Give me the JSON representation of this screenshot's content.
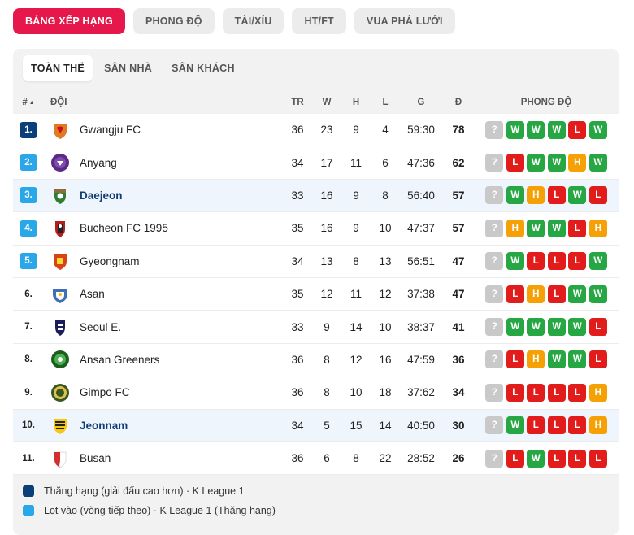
{
  "top_tabs": [
    "BẢNG XẾP HẠNG",
    "PHONG ĐỘ",
    "TÀI/XỈU",
    "HT/FT",
    "VUA PHÁ LƯỚI"
  ],
  "sub_tabs": [
    "TOÀN THỂ",
    "SÂN NHÀ",
    "SÂN KHÁCH"
  ],
  "headers": {
    "rank": "#",
    "team": "ĐỘI",
    "tr": "TR",
    "w": "W",
    "d": "H",
    "l": "L",
    "g": "G",
    "pts": "Đ",
    "form": "PHONG ĐỘ"
  },
  "colors": {
    "accent": "#e5174b",
    "promo": "#0a3f7a",
    "playoff": "#2aa7e8",
    "win": "#27a744",
    "loss": "#e21b1b",
    "draw": "#f5a105",
    "unknown": "#c9c9c9"
  },
  "rows": [
    {
      "rank": "1.",
      "zone": "promo",
      "team": "Gwangju FC",
      "tr": "36",
      "w": "23",
      "d": "9",
      "l": "4",
      "g": "59:30",
      "pts": "78",
      "form": [
        "?",
        "W",
        "W",
        "W",
        "L",
        "W"
      ],
      "bold": false,
      "logo": "gwangju-logo"
    },
    {
      "rank": "2.",
      "zone": "playoff",
      "team": "Anyang",
      "tr": "34",
      "w": "17",
      "d": "11",
      "l": "6",
      "g": "47:36",
      "pts": "62",
      "form": [
        "?",
        "L",
        "W",
        "W",
        "H",
        "W"
      ],
      "bold": false,
      "logo": "anyang-logo"
    },
    {
      "rank": "3.",
      "zone": "playoff",
      "team": "Daejeon",
      "tr": "33",
      "w": "16",
      "d": "9",
      "l": "8",
      "g": "56:40",
      "pts": "57",
      "form": [
        "?",
        "W",
        "H",
        "L",
        "W",
        "L"
      ],
      "bold": true,
      "logo": "daejeon-logo"
    },
    {
      "rank": "4.",
      "zone": "playoff",
      "team": "Bucheon FC 1995",
      "tr": "35",
      "w": "16",
      "d": "9",
      "l": "10",
      "g": "47:37",
      "pts": "57",
      "form": [
        "?",
        "H",
        "W",
        "W",
        "L",
        "H"
      ],
      "bold": false,
      "logo": "bucheon-logo"
    },
    {
      "rank": "5.",
      "zone": "playoff",
      "team": "Gyeongnam",
      "tr": "34",
      "w": "13",
      "d": "8",
      "l": "13",
      "g": "56:51",
      "pts": "47",
      "form": [
        "?",
        "W",
        "L",
        "L",
        "L",
        "W"
      ],
      "bold": false,
      "logo": "gyeongnam-logo"
    },
    {
      "rank": "6.",
      "zone": "",
      "team": "Asan",
      "tr": "35",
      "w": "12",
      "d": "11",
      "l": "12",
      "g": "37:38",
      "pts": "47",
      "form": [
        "?",
        "L",
        "H",
        "L",
        "W",
        "W"
      ],
      "bold": false,
      "logo": "asan-logo"
    },
    {
      "rank": "7.",
      "zone": "",
      "team": "Seoul E.",
      "tr": "33",
      "w": "9",
      "d": "14",
      "l": "10",
      "g": "38:37",
      "pts": "41",
      "form": [
        "?",
        "W",
        "W",
        "W",
        "W",
        "L"
      ],
      "bold": false,
      "logo": "seoul-e-logo"
    },
    {
      "rank": "8.",
      "zone": "",
      "team": "Ansan Greeners",
      "tr": "36",
      "w": "8",
      "d": "12",
      "l": "16",
      "g": "47:59",
      "pts": "36",
      "form": [
        "?",
        "L",
        "H",
        "W",
        "W",
        "L"
      ],
      "bold": false,
      "logo": "ansan-logo"
    },
    {
      "rank": "9.",
      "zone": "",
      "team": "Gimpo FC",
      "tr": "36",
      "w": "8",
      "d": "10",
      "l": "18",
      "g": "37:62",
      "pts": "34",
      "form": [
        "?",
        "L",
        "L",
        "L",
        "L",
        "H"
      ],
      "bold": false,
      "logo": "gimpo-logo"
    },
    {
      "rank": "10.",
      "zone": "",
      "team": "Jeonnam",
      "tr": "34",
      "w": "5",
      "d": "15",
      "l": "14",
      "g": "40:50",
      "pts": "30",
      "form": [
        "?",
        "W",
        "L",
        "L",
        "L",
        "H"
      ],
      "bold": true,
      "logo": "jeonnam-logo"
    },
    {
      "rank": "11.",
      "zone": "",
      "team": "Busan",
      "tr": "36",
      "w": "6",
      "d": "8",
      "l": "22",
      "g": "28:52",
      "pts": "26",
      "form": [
        "?",
        "L",
        "W",
        "L",
        "L",
        "L"
      ],
      "bold": false,
      "logo": "busan-logo"
    }
  ],
  "legend": [
    {
      "zone": "promo",
      "label": "Thăng hạng (giải đấu cao hơn) · K League 1"
    },
    {
      "zone": "playoff",
      "label": "Lọt vào (vòng tiếp theo) · K League 1 (Thăng hạng)"
    }
  ]
}
